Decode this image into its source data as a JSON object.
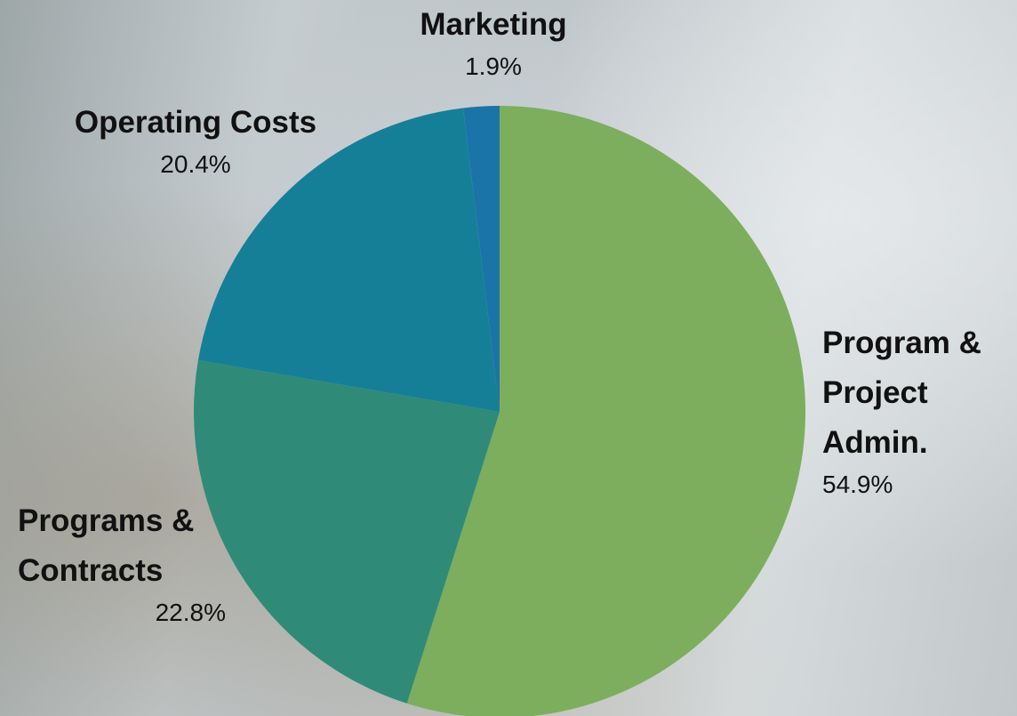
{
  "chart_data": {
    "type": "pie",
    "categories": [
      "Program & Project Admin.",
      "Programs & Contracts",
      "Operating Costs",
      "Marketing"
    ],
    "values": [
      54.9,
      22.8,
      20.4,
      1.9
    ],
    "value_labels": [
      "54.9%",
      "22.8%",
      "20.4%",
      "1.9%"
    ],
    "colors": [
      "#7cae5e",
      "#2f8b78",
      "#157f98",
      "#1b74a8"
    ]
  }
}
